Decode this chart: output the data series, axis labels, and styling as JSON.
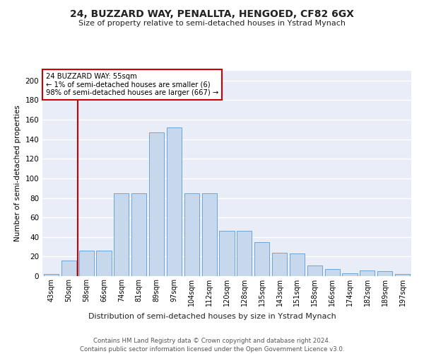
{
  "title": "24, BUZZARD WAY, PENALLTA, HENGOED, CF82 6GX",
  "subtitle": "Size of property relative to semi-detached houses in Ystrad Mynach",
  "xlabel": "Distribution of semi-detached houses by size in Ystrad Mynach",
  "ylabel": "Number of semi-detached properties",
  "categories": [
    "43sqm",
    "50sqm",
    "58sqm",
    "66sqm",
    "74sqm",
    "81sqm",
    "89sqm",
    "97sqm",
    "104sqm",
    "112sqm",
    "120sqm",
    "128sqm",
    "135sqm",
    "143sqm",
    "151sqm",
    "158sqm",
    "166sqm",
    "174sqm",
    "182sqm",
    "189sqm",
    "197sqm"
  ],
  "bar_values": [
    2,
    16,
    26,
    26,
    85,
    85,
    147,
    152,
    85,
    85,
    46,
    46,
    35,
    24,
    23,
    11,
    7,
    3,
    6,
    5,
    2
  ],
  "bar_color": "#c8d8ec",
  "bar_edge_color": "#5b9bd5",
  "vline_x": 1.5,
  "vline_color": "#cc0000",
  "annotation_title": "24 BUZZARD WAY: 55sqm",
  "annotation_line2": "← 1% of semi-detached houses are smaller (6)",
  "annotation_line3": "98% of semi-detached houses are larger (667) →",
  "background_color": "#e8edf8",
  "grid_color": "#ffffff",
  "ylim": [
    0,
    210
  ],
  "yticks": [
    0,
    20,
    40,
    60,
    80,
    100,
    120,
    140,
    160,
    180,
    200
  ],
  "footer1": "Contains HM Land Registry data © Crown copyright and database right 2024.",
  "footer2": "Contains public sector information licensed under the Open Government Licence v3.0."
}
